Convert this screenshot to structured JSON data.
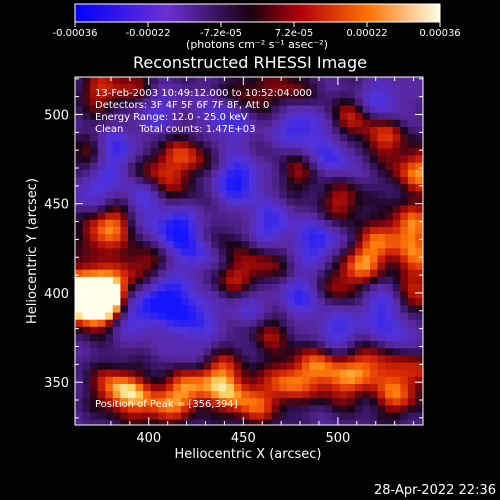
{
  "chart_data": {
    "type": "heatmap",
    "title": "Reconstructed RHESSI Image",
    "xlabel": "Heliocentric X (arcsec)",
    "ylabel": "Heliocentric Y (arcsec)",
    "xlim": [
      361,
      545
    ],
    "ylim": [
      326,
      521
    ],
    "x_ticks": [
      400,
      450,
      500
    ],
    "y_ticks": [
      350,
      400,
      450,
      500
    ],
    "colorbar": {
      "ticks": [
        "-0.00036",
        "-0.00022",
        "-7.2e-05",
        "7.2e-05",
        "0.00022",
        "0.00036"
      ],
      "unit_label": "(photons cm⁻² s⁻¹ asec⁻²)",
      "range": [
        -0.00036,
        0.00036
      ]
    },
    "info_lines": [
      "13-Feb-2003 10:49:12.000 to 10:52:04.000",
      "Detectors: 3F 4F 5F 6F 7F 8F, Att 0",
      "Energy Range: 12.0 - 25.0 keV",
      "Clean     Total counts: 1.47E+03"
    ],
    "peak_label": "Position of Peak = [356,394]",
    "peak": [
      356,
      394
    ],
    "blobs_bright": [
      [
        361,
        403,
        0.9
      ],
      [
        366,
        398,
        1.0
      ],
      [
        372,
        395,
        0.9
      ],
      [
        378,
        402,
        0.8
      ],
      [
        379,
        350,
        0.6
      ],
      [
        388,
        344,
        0.7
      ],
      [
        405,
        337,
        0.6
      ],
      [
        418,
        348,
        0.8
      ],
      [
        432,
        360,
        0.9
      ],
      [
        441,
        346,
        0.7
      ],
      [
        455,
        338,
        0.6
      ],
      [
        472,
        352,
        0.8
      ],
      [
        489,
        362,
        0.7
      ],
      [
        500,
        350,
        0.6
      ],
      [
        515,
        362,
        0.8
      ],
      [
        529,
        344,
        0.7
      ],
      [
        540,
        360,
        0.6
      ],
      [
        380,
        445,
        0.7
      ],
      [
        372,
        432,
        0.6
      ],
      [
        395,
        417,
        0.6
      ],
      [
        410,
        455,
        0.5
      ],
      [
        418,
        478,
        0.7
      ],
      [
        398,
        470,
        0.6
      ],
      [
        448,
        512,
        0.6
      ],
      [
        472,
        515,
        0.5
      ],
      [
        505,
        500,
        0.6
      ],
      [
        522,
        490,
        0.7
      ],
      [
        540,
        470,
        0.9
      ],
      [
        537,
        440,
        0.8
      ],
      [
        542,
        420,
        0.7
      ],
      [
        520,
        430,
        0.6
      ],
      [
        500,
        453,
        0.6
      ],
      [
        510,
        418,
        0.7
      ],
      [
        498,
        405,
        0.5
      ],
      [
        540,
        398,
        0.6
      ],
      [
        443,
        408,
        0.6
      ],
      [
        460,
        418,
        0.5
      ],
      [
        478,
        470,
        0.5
      ],
      [
        462,
        380,
        0.5
      ],
      [
        368,
        478,
        0.6
      ],
      [
        372,
        515,
        0.6
      ],
      [
        392,
        518,
        0.5
      ],
      [
        434,
        430,
        0.5
      ]
    ],
    "blobs_dark": [
      [
        380,
        480,
        -0.8
      ],
      [
        395,
        455,
        -0.7
      ],
      [
        412,
        440,
        -0.9
      ],
      [
        425,
        425,
        -0.7
      ],
      [
        405,
        400,
        -0.8
      ],
      [
        390,
        390,
        -0.6
      ],
      [
        420,
        390,
        -0.7
      ],
      [
        445,
        465,
        -0.8
      ],
      [
        462,
        440,
        -0.6
      ],
      [
        478,
        495,
        -0.7
      ],
      [
        495,
        478,
        -0.6
      ],
      [
        488,
        430,
        -0.7
      ],
      [
        520,
        395,
        -0.5
      ],
      [
        478,
        400,
        -0.6
      ],
      [
        450,
        395,
        -0.5
      ],
      [
        425,
        365,
        -0.6
      ],
      [
        498,
        380,
        -0.6
      ],
      [
        530,
        380,
        -0.5
      ],
      [
        440,
        500,
        -0.7
      ],
      [
        520,
        508,
        -0.6
      ],
      [
        370,
        460,
        -0.6
      ],
      [
        402,
        505,
        -0.5
      ]
    ]
  },
  "footer": {
    "timestamp": "28-Apr-2022 22:36"
  }
}
